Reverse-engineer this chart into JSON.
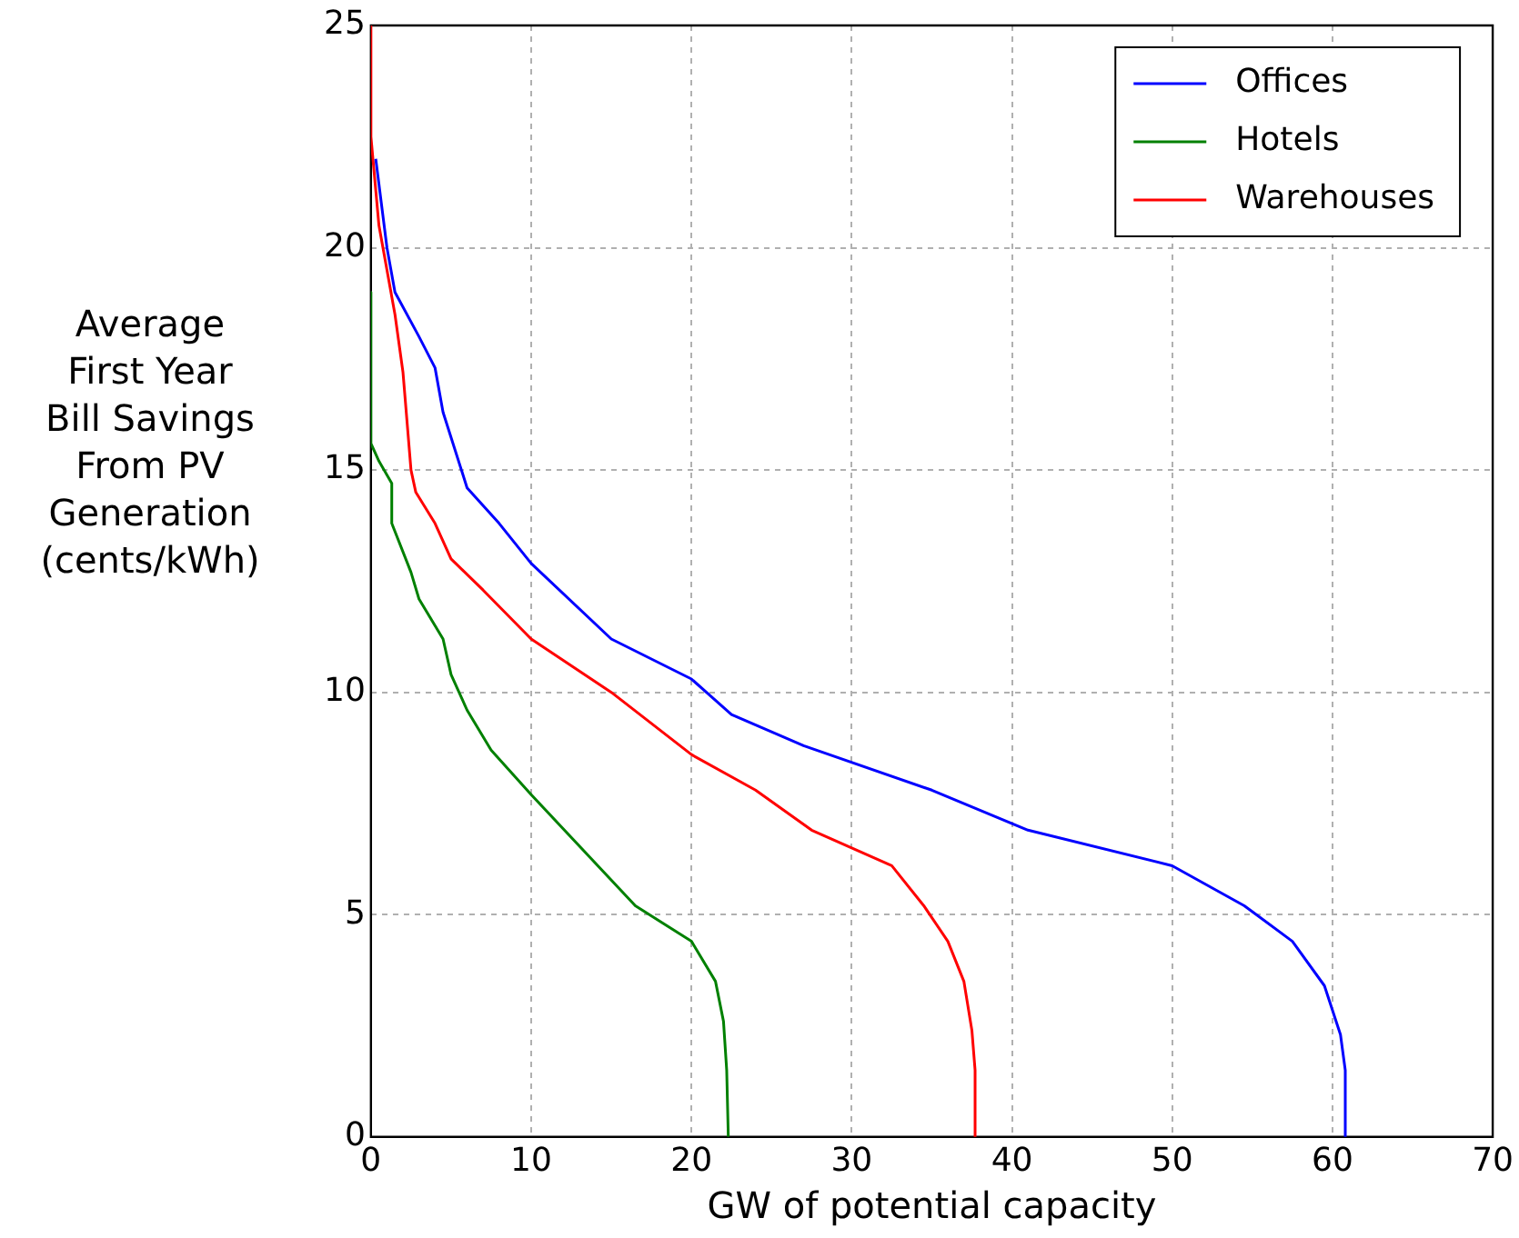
{
  "chart_data": {
    "type": "line",
    "xlabel": "GW of potential capacity",
    "ylabel": "Average\nFirst Year\nBill Savings\nFrom PV\nGeneration\n(cents/kWh)",
    "xlim": [
      0,
      70
    ],
    "xticks": [
      0,
      10,
      20,
      30,
      40,
      50,
      60,
      70
    ],
    "ylim": [
      0,
      25
    ],
    "yticks": [
      0,
      5,
      10,
      15,
      20,
      25
    ],
    "grid": true,
    "legend": "top right",
    "marker": "none",
    "line_style": "solid",
    "series": [
      {
        "name": "Offices",
        "color": "#0000ff",
        "x": [
          0.3,
          1,
          1.5,
          3,
          4,
          4.5,
          6,
          8,
          10,
          15,
          20,
          22.5,
          27,
          35,
          41,
          50,
          54.5,
          57.5,
          59.5,
          60.5,
          60.8,
          60.8
        ],
        "values": [
          22,
          20,
          19,
          18,
          17.3,
          16.3,
          14.6,
          13.8,
          12.9,
          11.2,
          10.3,
          9.5,
          8.8,
          7.8,
          6.9,
          6.1,
          5.2,
          4.4,
          3.4,
          2.3,
          1.5,
          0
        ]
      },
      {
        "name": "Hotels",
        "color": "#008000",
        "x": [
          0,
          0,
          0.5,
          1.3,
          1.3,
          2.5,
          3,
          4.5,
          5,
          6,
          7.5,
          10,
          16.5,
          20,
          21.5,
          22,
          22.2,
          22.3
        ],
        "values": [
          19,
          15.6,
          15.2,
          14.7,
          13.8,
          12.7,
          12.1,
          11.2,
          10.4,
          9.6,
          8.7,
          7.7,
          5.2,
          4.4,
          3.5,
          2.6,
          1.5,
          0
        ]
      },
      {
        "name": "Warehouses",
        "color": "#ff0000",
        "x": [
          0,
          0,
          0.5,
          1.5,
          2,
          2.5,
          2.8,
          4,
          5,
          7,
          10,
          15,
          20,
          24,
          27.5,
          32.5,
          34.5,
          36,
          37,
          37.5,
          37.7,
          37.7
        ],
        "values": [
          25,
          22.5,
          20.5,
          18.5,
          17.2,
          15,
          14.5,
          13.8,
          13,
          12.3,
          11.2,
          10,
          8.6,
          7.8,
          6.9,
          6.1,
          5.2,
          4.4,
          3.5,
          2.4,
          1.5,
          0
        ]
      }
    ]
  }
}
